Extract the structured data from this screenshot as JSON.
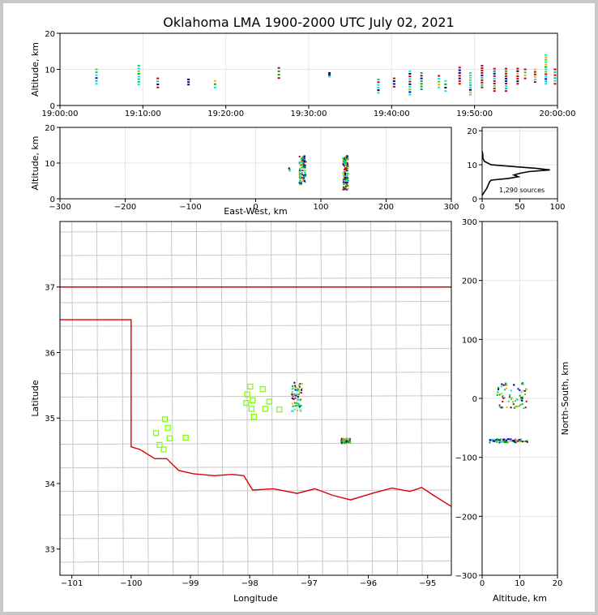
{
  "title": "Oklahoma LMA 1900-2000 UTC July 02, 2021",
  "source_count_label": "1,290 sources",
  "colors": {
    "state_border": "#dd0000",
    "county": "#c8c8c8",
    "station": "#7cfc00",
    "grid": "#e6e6e6"
  },
  "chart_data": [
    {
      "id": "time_height",
      "type": "scatter",
      "title": "",
      "xlabel": "",
      "ylabel": "Altitude, km",
      "x_ticks": [
        "19:00:00",
        "19:10:00",
        "19:20:00",
        "19:30:00",
        "19:40:00",
        "19:50:00",
        "20:00:00"
      ],
      "x_tick_minutes": [
        0,
        10,
        20,
        30,
        40,
        50,
        60
      ],
      "xlim_minutes": [
        0,
        60
      ],
      "ylim": [
        0,
        20
      ],
      "y_ticks": [
        0,
        10,
        20
      ],
      "grid": true,
      "clusters": [
        {
          "t": 4.4,
          "zmin": 6.0,
          "zmax": 10.0,
          "color": "#00e5ee"
        },
        {
          "t": 9.5,
          "zmin": 5.8,
          "zmax": 11.0,
          "color": "#00e5ee"
        },
        {
          "t": 11.8,
          "zmin": 5.0,
          "zmax": 7.5,
          "color": "#cc0000"
        },
        {
          "t": 15.5,
          "zmin": 5.8,
          "zmax": 7.2,
          "color": "#0000aa"
        },
        {
          "t": 18.7,
          "zmin": 5.0,
          "zmax": 6.8,
          "color": "#00e5ee"
        },
        {
          "t": 26.4,
          "zmin": 7.6,
          "zmax": 10.4,
          "color": "#aa0055"
        },
        {
          "t": 32.5,
          "zmin": 8.0,
          "zmax": 9.0,
          "color": "#00e5ee"
        },
        {
          "t": 38.4,
          "zmin": 3.5,
          "zmax": 7.2,
          "color": "#00e5ee"
        },
        {
          "t": 40.3,
          "zmin": 5.2,
          "zmax": 7.5,
          "color": "#cc0000"
        },
        {
          "t": 42.2,
          "zmin": 3.0,
          "zmax": 9.5,
          "color": "#00e5ee"
        },
        {
          "t": 43.6,
          "zmin": 4.5,
          "zmax": 9.0,
          "color": "#00aaaa"
        },
        {
          "t": 45.7,
          "zmin": 5.0,
          "zmax": 8.2,
          "color": "#00e5ee"
        },
        {
          "t": 46.5,
          "zmin": 4.0,
          "zmax": 6.8,
          "color": "#00e5ee"
        },
        {
          "t": 48.2,
          "zmin": 6.0,
          "zmax": 10.5,
          "color": "#cc0000"
        },
        {
          "t": 49.5,
          "zmin": 3.0,
          "zmax": 9.0,
          "color": "#00e5ee"
        },
        {
          "t": 50.9,
          "zmin": 5.0,
          "zmax": 11.0,
          "color": "#cc0000"
        },
        {
          "t": 52.4,
          "zmin": 4.0,
          "zmax": 10.2,
          "color": "#aa0055"
        },
        {
          "t": 53.8,
          "zmin": 4.0,
          "zmax": 10.2,
          "color": "#cc0000"
        },
        {
          "t": 55.2,
          "zmin": 6.0,
          "zmax": 10.2,
          "color": "#cc0000"
        },
        {
          "t": 56.1,
          "zmin": 7.5,
          "zmax": 10.0,
          "color": "#cc0000"
        },
        {
          "t": 57.3,
          "zmin": 6.5,
          "zmax": 10.0,
          "color": "#cc0000"
        },
        {
          "t": 58.6,
          "zmin": 6.0,
          "zmax": 14.0,
          "color": "#00e5ee"
        },
        {
          "t": 59.7,
          "zmin": 6.0,
          "zmax": 10.0,
          "color": "#cc0000"
        }
      ]
    },
    {
      "id": "ew_height",
      "type": "scatter",
      "xlabel": "East-West, km",
      "ylabel": "Altitude, km",
      "xlim": [
        -300,
        300
      ],
      "x_ticks": [
        -300,
        -200,
        -100,
        0,
        100,
        200,
        300
      ],
      "x_tick_labels": [
        "−300",
        "−200",
        "−100",
        "0",
        "100",
        "200",
        "300"
      ],
      "ylim": [
        0,
        20
      ],
      "y_ticks": [
        0,
        10,
        20
      ],
      "grid": true,
      "clusters": [
        {
          "x": 72,
          "zmin": 4.0,
          "zmax": 12.0,
          "xspread": 5
        },
        {
          "x": 138,
          "zmin": 2.5,
          "zmax": 12.0,
          "xspread": 4
        },
        {
          "x": 52,
          "zmin": 7.8,
          "zmax": 8.6,
          "xspread": 1
        }
      ]
    },
    {
      "id": "altitude_histogram",
      "type": "line",
      "xlim": [
        0,
        100
      ],
      "x_ticks": [
        0,
        50,
        100
      ],
      "ylim": [
        0,
        21
      ],
      "y_ticks": [
        0,
        10,
        20
      ],
      "grid": true,
      "profile": [
        {
          "alt": 1.0,
          "count": 0
        },
        {
          "alt": 2.0,
          "count": 3
        },
        {
          "alt": 3.0,
          "count": 6
        },
        {
          "alt": 4.0,
          "count": 8
        },
        {
          "alt": 5.0,
          "count": 10
        },
        {
          "alt": 5.5,
          "count": 12
        },
        {
          "alt": 6.0,
          "count": 35
        },
        {
          "alt": 6.5,
          "count": 48
        },
        {
          "alt": 7.0,
          "count": 42
        },
        {
          "alt": 7.5,
          "count": 50
        },
        {
          "alt": 8.0,
          "count": 62
        },
        {
          "alt": 8.5,
          "count": 90
        },
        {
          "alt": 9.0,
          "count": 70
        },
        {
          "alt": 9.5,
          "count": 40
        },
        {
          "alt": 10.0,
          "count": 12
        },
        {
          "alt": 11.0,
          "count": 3
        },
        {
          "alt": 12.0,
          "count": 1
        },
        {
          "alt": 13.0,
          "count": 1
        },
        {
          "alt": 14.0,
          "count": 0
        }
      ]
    },
    {
      "id": "plan_view",
      "type": "scatter",
      "xlabel": "Longitude",
      "ylabel": "Latitude",
      "xlim": [
        -101.2,
        -94.6
      ],
      "ylim": [
        32.6,
        38.0
      ],
      "x_ticks": [
        -101,
        -100,
        -99,
        -98,
        -97,
        -96,
        -95
      ],
      "x_tick_labels": [
        "−101",
        "−100",
        "−99",
        "−98",
        "−97",
        "−96",
        "−95"
      ],
      "y_ticks": [
        33,
        34,
        35,
        36,
        37
      ],
      "stations": [
        [
          -97.99,
          35.48
        ],
        [
          -98.04,
          35.36
        ],
        [
          -98.06,
          35.23
        ],
        [
          -97.95,
          35.27
        ],
        [
          -97.78,
          35.44
        ],
        [
          -97.67,
          35.25
        ],
        [
          -97.97,
          35.14
        ],
        [
          -97.93,
          35.02
        ],
        [
          -97.74,
          35.14
        ],
        [
          -97.5,
          35.13
        ],
        [
          -99.43,
          34.98
        ],
        [
          -99.38,
          34.85
        ],
        [
          -99.58,
          34.77
        ],
        [
          -99.35,
          34.69
        ],
        [
          -99.08,
          34.7
        ],
        [
          -99.52,
          34.59
        ],
        [
          -99.45,
          34.52
        ]
      ],
      "clusters": [
        {
          "lon": -97.2,
          "lat": 35.32,
          "dlon": 0.09,
          "dlat": 0.22
        },
        {
          "lon": -96.38,
          "lat": 34.65,
          "dlon": 0.08,
          "dlat": 0.04
        }
      ]
    },
    {
      "id": "ns_height",
      "type": "scatter",
      "xlabel": "Altitude, km",
      "ylabel": "North-South, km",
      "xlim": [
        0,
        20
      ],
      "x_ticks": [
        0,
        10,
        20
      ],
      "ylim": [
        -300,
        300
      ],
      "y_ticks": [
        -300,
        -200,
        -100,
        0,
        100,
        200,
        300
      ],
      "y_tick_labels": [
        "−300",
        "−200",
        "−100",
        "0",
        "100",
        "200",
        "300"
      ],
      "grid": true,
      "clusters": [
        {
          "y": 5,
          "zmin": 4.0,
          "zmax": 12.0,
          "yspread": 22
        },
        {
          "y": -72,
          "zmin": 2.0,
          "zmax": 12.0,
          "yspread": 3
        }
      ]
    }
  ]
}
